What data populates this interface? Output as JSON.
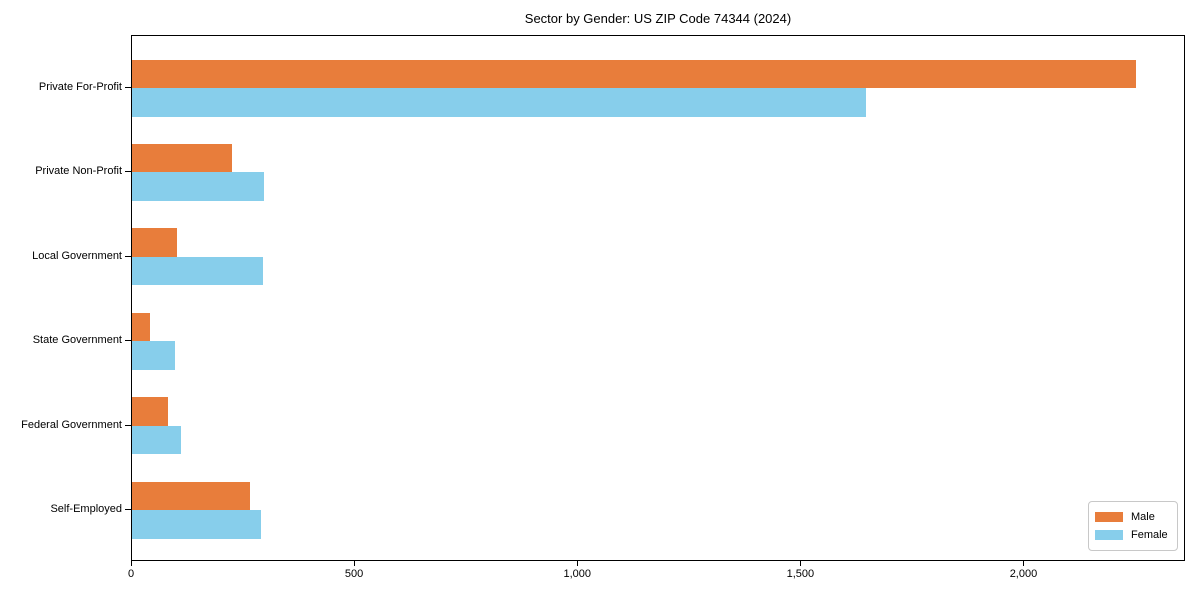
{
  "chart_data": {
    "type": "bar",
    "orientation": "horizontal",
    "title": "Sector by Gender: US ZIP Code 74344 (2024)",
    "categories": [
      "Private For-Profit",
      "Private Non-Profit",
      "Local Government",
      "State Government",
      "Federal Government",
      "Self-Employed"
    ],
    "series": [
      {
        "name": "Male",
        "color": "#E87D3B",
        "values": [
          2250,
          225,
          100,
          40,
          80,
          265
        ]
      },
      {
        "name": "Female",
        "color": "#87CEEB",
        "values": [
          1645,
          296,
          293,
          97,
          110,
          290
        ]
      }
    ],
    "xlabel": "",
    "ylabel": "",
    "xlim": [
      0,
      2362
    ],
    "xticks": [
      0,
      500,
      1000,
      1500,
      2000
    ],
    "xtick_labels": [
      "0",
      "500",
      "1,000",
      "1,500",
      "2,000"
    ],
    "grid": false,
    "legend": {
      "position": "lower-right",
      "entries": [
        "Male",
        "Female"
      ]
    },
    "colors": {
      "male": "#E87D3B",
      "female": "#87CEEB",
      "background": "#ffffff",
      "text": "#000000",
      "spine": "#000000",
      "legend_border": "#c8c8c8"
    }
  }
}
